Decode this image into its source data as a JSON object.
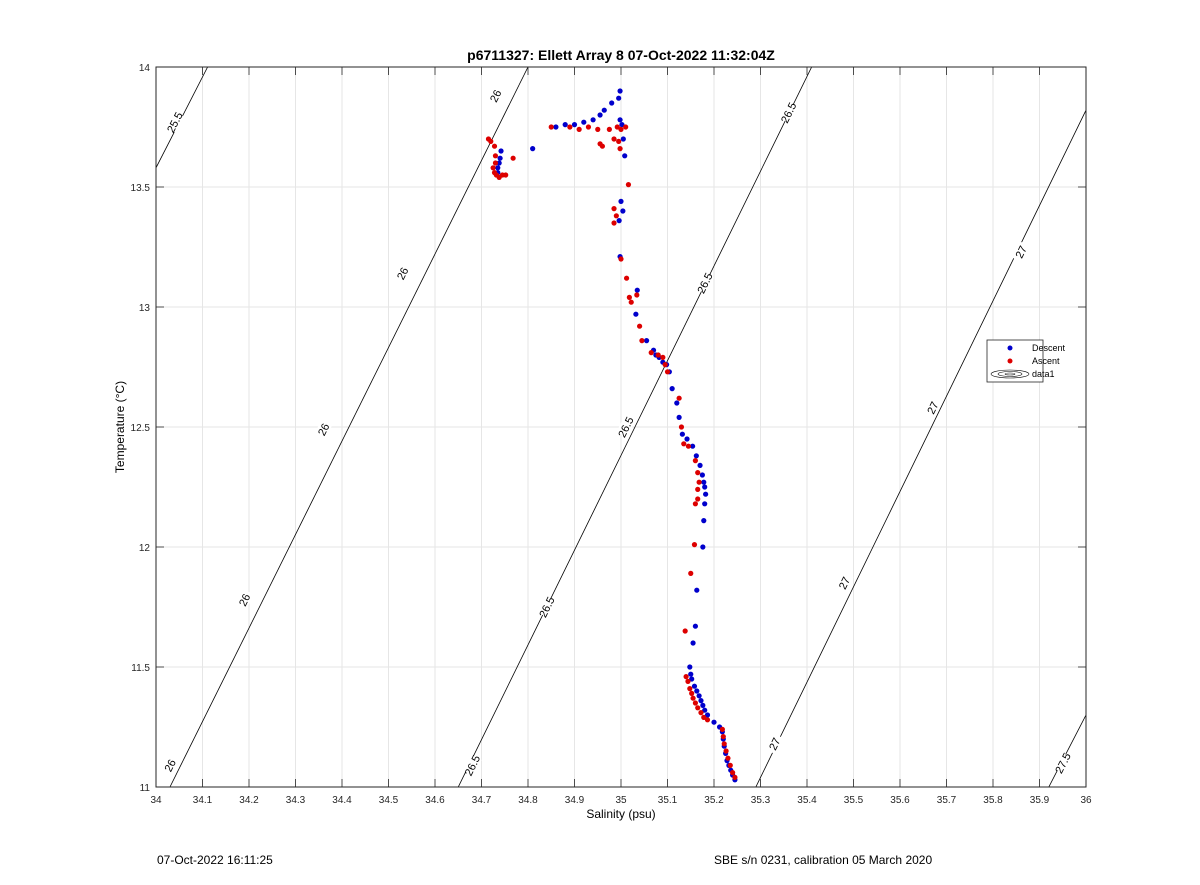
{
  "chart_data": {
    "type": "scatter",
    "title": "p6711327: Ellett Array 8 07-Oct-2022 11:32:04Z",
    "xlabel": "Salinity (psu)",
    "ylabel": "Temperature (°C)",
    "xlim": [
      34,
      36
    ],
    "ylim": [
      11,
      14
    ],
    "x_ticks": [
      "34",
      "34.1",
      "34.2",
      "34.3",
      "34.4",
      "34.5",
      "34.6",
      "34.7",
      "34.8",
      "34.9",
      "35",
      "35.1",
      "35.2",
      "35.3",
      "35.4",
      "35.5",
      "35.6",
      "35.7",
      "35.8",
      "35.9",
      "36"
    ],
    "y_ticks": [
      "11",
      "11.5",
      "12",
      "12.5",
      "13",
      "13.5",
      "14"
    ],
    "grid": true,
    "legend_position": "right",
    "legend": [
      "Descent",
      "Ascent",
      "data1"
    ],
    "contours": [
      {
        "label": "25.5",
        "points": [
          [
            34,
            13.58
          ],
          [
            34.111,
            14
          ]
        ],
        "labels": [
          {
            "x": 34.04,
            "y": 13.77
          }
        ]
      },
      {
        "label": "26",
        "points": [
          [
            34.03,
            11
          ],
          [
            34.8,
            14
          ]
        ],
        "labels": [
          {
            "x": 34.03,
            "y": 11.09
          },
          {
            "x": 34.19,
            "y": 11.78
          },
          {
            "x": 34.36,
            "y": 12.49
          },
          {
            "x": 34.53,
            "y": 13.14
          },
          {
            "x": 34.73,
            "y": 13.88
          }
        ]
      },
      {
        "label": "26.5",
        "points": [
          [
            34.65,
            11
          ],
          [
            35.41,
            14
          ]
        ],
        "labels": [
          {
            "x": 34.68,
            "y": 11.09
          },
          {
            "x": 34.84,
            "y": 11.75
          },
          {
            "x": 35.01,
            "y": 12.5
          },
          {
            "x": 35.18,
            "y": 13.1
          },
          {
            "x": 35.36,
            "y": 13.81
          }
        ]
      },
      {
        "label": "27",
        "points": [
          [
            35.29,
            11
          ],
          [
            36,
            13.82
          ]
        ],
        "labels": [
          {
            "x": 35.33,
            "y": 11.18
          },
          {
            "x": 35.48,
            "y": 11.85
          },
          {
            "x": 35.67,
            "y": 12.58
          },
          {
            "x": 35.86,
            "y": 13.23
          }
        ]
      },
      {
        "label": "27.5",
        "points": [
          [
            35.92,
            11
          ],
          [
            36,
            11.3
          ]
        ],
        "labels": [
          {
            "x": 35.95,
            "y": 11.1
          }
        ]
      }
    ],
    "series": [
      {
        "name": "Descent",
        "color": "#0000cc",
        "points": [
          [
            34.998,
            13.9
          ],
          [
            34.995,
            13.87
          ],
          [
            34.98,
            13.85
          ],
          [
            34.964,
            13.82
          ],
          [
            34.955,
            13.8
          ],
          [
            34.94,
            13.78
          ],
          [
            34.92,
            13.77
          ],
          [
            34.9,
            13.76
          ],
          [
            34.88,
            13.76
          ],
          [
            34.86,
            13.75
          ],
          [
            34.81,
            13.66
          ],
          [
            34.742,
            13.65
          ],
          [
            34.74,
            13.62
          ],
          [
            34.738,
            13.6
          ],
          [
            34.735,
            13.58
          ],
          [
            34.735,
            13.56
          ],
          [
            34.998,
            13.78
          ],
          [
            35.002,
            13.76
          ],
          [
            35.005,
            13.7
          ],
          [
            35.008,
            13.63
          ],
          [
            35.0,
            13.44
          ],
          [
            35.004,
            13.4
          ],
          [
            34.996,
            13.36
          ],
          [
            34.998,
            13.21
          ],
          [
            35.035,
            13.07
          ],
          [
            35.032,
            12.97
          ],
          [
            35.055,
            12.86
          ],
          [
            35.07,
            12.82
          ],
          [
            35.075,
            12.8
          ],
          [
            35.082,
            12.79
          ],
          [
            35.09,
            12.77
          ],
          [
            35.098,
            12.76
          ],
          [
            35.104,
            12.73
          ],
          [
            35.11,
            12.66
          ],
          [
            35.12,
            12.6
          ],
          [
            35.125,
            12.54
          ],
          [
            35.132,
            12.47
          ],
          [
            35.142,
            12.45
          ],
          [
            35.154,
            12.42
          ],
          [
            35.162,
            12.38
          ],
          [
            35.17,
            12.34
          ],
          [
            35.175,
            12.3
          ],
          [
            35.178,
            12.27
          ],
          [
            35.18,
            12.25
          ],
          [
            35.182,
            12.22
          ],
          [
            35.18,
            12.18
          ],
          [
            35.178,
            12.11
          ],
          [
            35.176,
            12.0
          ],
          [
            35.163,
            11.82
          ],
          [
            35.16,
            11.67
          ],
          [
            35.155,
            11.6
          ],
          [
            35.148,
            11.5
          ],
          [
            35.15,
            11.47
          ],
          [
            35.152,
            11.45
          ],
          [
            35.158,
            11.42
          ],
          [
            35.163,
            11.4
          ],
          [
            35.168,
            11.38
          ],
          [
            35.172,
            11.36
          ],
          [
            35.176,
            11.34
          ],
          [
            35.18,
            11.32
          ],
          [
            35.186,
            11.3
          ],
          [
            35.2,
            11.27
          ],
          [
            35.212,
            11.25
          ],
          [
            35.218,
            11.23
          ],
          [
            35.22,
            11.2
          ],
          [
            35.222,
            11.17
          ],
          [
            35.225,
            11.14
          ],
          [
            35.228,
            11.11
          ],
          [
            35.232,
            11.09
          ],
          [
            35.236,
            11.07
          ],
          [
            35.24,
            11.05
          ],
          [
            35.245,
            11.03
          ]
        ]
      },
      {
        "name": "Ascent",
        "color": "#dd0000",
        "points": [
          [
            34.715,
            13.7
          ],
          [
            34.72,
            13.69
          ],
          [
            34.728,
            13.67
          ],
          [
            34.73,
            13.63
          ],
          [
            34.73,
            13.6
          ],
          [
            34.725,
            13.58
          ],
          [
            34.728,
            13.56
          ],
          [
            34.732,
            13.55
          ],
          [
            34.738,
            13.54
          ],
          [
            34.745,
            13.55
          ],
          [
            34.752,
            13.55
          ],
          [
            34.768,
            13.62
          ],
          [
            34.85,
            13.75
          ],
          [
            34.89,
            13.75
          ],
          [
            34.91,
            13.74
          ],
          [
            34.93,
            13.75
          ],
          [
            34.95,
            13.74
          ],
          [
            34.975,
            13.74
          ],
          [
            34.992,
            13.75
          ],
          [
            35.0,
            13.74
          ],
          [
            34.985,
            13.7
          ],
          [
            34.96,
            13.67
          ],
          [
            34.955,
            13.68
          ],
          [
            34.995,
            13.69
          ],
          [
            34.998,
            13.66
          ],
          [
            35.01,
            13.75
          ],
          [
            35.016,
            13.51
          ],
          [
            34.985,
            13.41
          ],
          [
            34.99,
            13.38
          ],
          [
            34.985,
            13.35
          ],
          [
            35.0,
            13.2
          ],
          [
            35.012,
            13.12
          ],
          [
            35.018,
            13.04
          ],
          [
            35.022,
            13.02
          ],
          [
            35.034,
            13.05
          ],
          [
            35.04,
            12.92
          ],
          [
            35.045,
            12.86
          ],
          [
            35.065,
            12.81
          ],
          [
            35.08,
            12.8
          ],
          [
            35.09,
            12.79
          ],
          [
            35.095,
            12.76
          ],
          [
            35.1,
            12.73
          ],
          [
            35.125,
            12.62
          ],
          [
            35.13,
            12.5
          ],
          [
            35.135,
            12.43
          ],
          [
            35.145,
            12.42
          ],
          [
            35.16,
            12.36
          ],
          [
            35.165,
            12.31
          ],
          [
            35.168,
            12.27
          ],
          [
            35.165,
            12.24
          ],
          [
            35.165,
            12.2
          ],
          [
            35.16,
            12.18
          ],
          [
            35.158,
            12.01
          ],
          [
            35.15,
            11.89
          ],
          [
            35.138,
            11.65
          ],
          [
            35.14,
            11.46
          ],
          [
            35.144,
            11.44
          ],
          [
            35.148,
            11.41
          ],
          [
            35.152,
            11.39
          ],
          [
            35.155,
            11.37
          ],
          [
            35.16,
            11.35
          ],
          [
            35.165,
            11.33
          ],
          [
            35.172,
            11.31
          ],
          [
            35.178,
            11.29
          ],
          [
            35.186,
            11.28
          ],
          [
            35.218,
            11.24
          ],
          [
            35.22,
            11.21
          ],
          [
            35.222,
            11.18
          ],
          [
            35.226,
            11.15
          ],
          [
            35.23,
            11.12
          ],
          [
            35.235,
            11.09
          ],
          [
            35.24,
            11.06
          ],
          [
            35.245,
            11.04
          ]
        ]
      }
    ]
  },
  "footer": {
    "left_text": "07-Oct-2022 16:11:25",
    "right_text": "SBE s/n 0231, calibration 05 March 2020"
  }
}
